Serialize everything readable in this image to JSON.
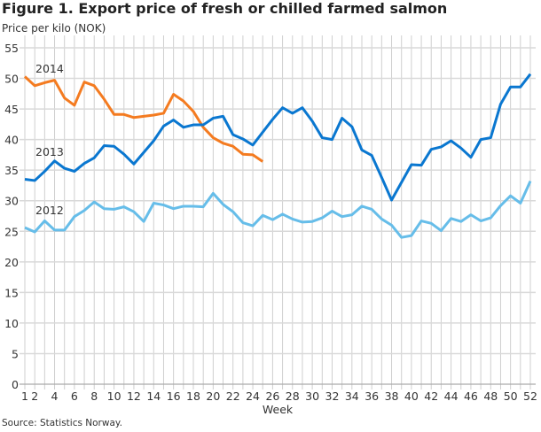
{
  "chart_data": {
    "type": "line",
    "title": "Figure 1. Export price of fresh or chilled farmed salmon",
    "ylabel": "Price per kilo (NOK)",
    "xlabel": "Week",
    "source": "Source: Statistics Norway.",
    "ylim": [
      0,
      55
    ],
    "yticks": [
      0,
      5,
      10,
      15,
      20,
      25,
      30,
      35,
      40,
      45,
      50,
      55
    ],
    "xlim": [
      1,
      52
    ],
    "xticks": [
      1,
      2,
      4,
      6,
      8,
      10,
      12,
      14,
      16,
      18,
      20,
      22,
      24,
      26,
      28,
      30,
      32,
      34,
      36,
      38,
      40,
      42,
      44,
      46,
      48,
      50,
      52
    ],
    "grid": true,
    "series": [
      {
        "name": "2014",
        "color": "#f47b20",
        "values": [
          50.3,
          48.8,
          49.3,
          49.7,
          46.8,
          45.6,
          49.4,
          48.8,
          46.6,
          44.1,
          44.1,
          43.6,
          43.8,
          44.0,
          44.3,
          47.4,
          46.3,
          44.6,
          42.0,
          40.3,
          39.4,
          38.9,
          37.6,
          37.5,
          36.4
        ]
      },
      {
        "name": "2013",
        "color": "#0a77d0",
        "values": [
          33.5,
          33.3,
          34.8,
          36.5,
          35.3,
          34.8,
          36.1,
          37.0,
          39.0,
          38.9,
          37.6,
          36.0,
          37.9,
          39.8,
          42.2,
          43.2,
          42.0,
          42.4,
          42.4,
          43.5,
          43.8,
          40.8,
          40.1,
          39.1,
          41.2,
          43.3,
          45.2,
          44.3,
          45.2,
          43.0,
          40.3,
          40.0,
          43.5,
          42.1,
          38.3,
          37.4,
          33.8,
          30.1,
          33.0,
          35.9,
          35.8,
          38.4,
          38.8,
          39.8,
          38.6,
          37.1,
          40.0,
          40.3,
          45.8,
          48.6,
          48.6,
          50.7
        ]
      },
      {
        "name": "2012",
        "color": "#66bde9",
        "values": [
          25.6,
          24.9,
          26.7,
          25.2,
          25.2,
          27.4,
          28.4,
          29.8,
          28.7,
          28.6,
          29.0,
          28.2,
          26.6,
          29.6,
          29.3,
          28.7,
          29.1,
          29.1,
          29.0,
          31.2,
          29.4,
          28.2,
          26.4,
          25.9,
          27.6,
          26.9,
          27.8,
          27.0,
          26.5,
          26.6,
          27.2,
          28.3,
          27.4,
          27.7,
          29.1,
          28.6,
          27.0,
          26.0,
          24.0,
          24.3,
          26.7,
          26.3,
          25.1,
          27.1,
          26.6,
          27.7,
          26.7,
          27.2,
          29.2,
          30.8,
          29.6,
          33.2
        ]
      }
    ]
  }
}
